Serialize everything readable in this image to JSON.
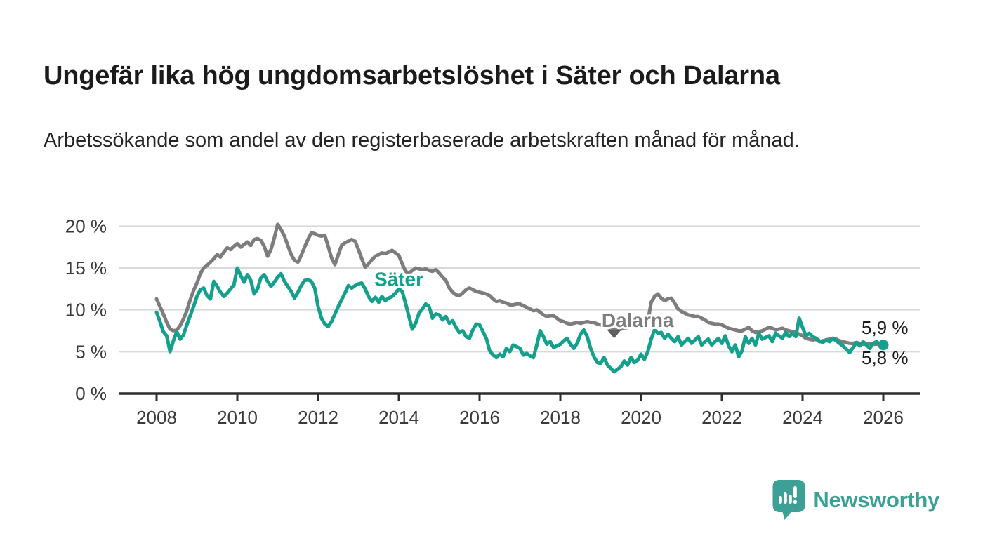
{
  "header": {
    "title": "Ungefär lika hög ungdomsarbetslöshet i Säter och Dalarna",
    "subtitle": "Arbetssökande som andel av den registerbaserade arbetskraften månad för månad."
  },
  "chart_data": {
    "type": "line",
    "title": "Ungefär lika hög ungdomsarbetslöshet i Säter och Dalarna",
    "unit": "percent",
    "frequency": "monthly",
    "x_start": "2008-01",
    "x_end": "2026-01",
    "ylim": [
      0,
      20
    ],
    "grid": true,
    "y_ticks": [
      {
        "value": 0,
        "label": "0 %"
      },
      {
        "value": 5,
        "label": "5 %"
      },
      {
        "value": 10,
        "label": "10 %"
      },
      {
        "value": 15,
        "label": "15 %"
      },
      {
        "value": 20,
        "label": "20 %"
      }
    ],
    "x_ticks": [
      {
        "year": 2008,
        "label": "2008"
      },
      {
        "year": 2010,
        "label": "2010"
      },
      {
        "year": 2012,
        "label": "2012"
      },
      {
        "year": 2014,
        "label": "2014"
      },
      {
        "year": 2016,
        "label": "2016"
      },
      {
        "year": 2018,
        "label": "2018"
      },
      {
        "year": 2020,
        "label": "2020"
      },
      {
        "year": 2022,
        "label": "2022"
      },
      {
        "year": 2024,
        "label": "2024"
      },
      {
        "year": 2026,
        "label": "2026"
      }
    ],
    "series": [
      {
        "name": "Dalarna",
        "color": "#7d7d7d",
        "values": [
          11.3,
          10.4,
          9.5,
          8.5,
          7.7,
          7.5,
          7.6,
          8.1,
          8.9,
          9.9,
          11.2,
          12.3,
          13.2,
          14.3,
          15.0,
          15.3,
          15.7,
          16.1,
          16.6,
          16.3,
          16.9,
          17.4,
          17.2,
          17.6,
          17.9,
          17.5,
          17.8,
          18.1,
          17.7,
          18.4,
          18.5,
          18.3,
          17.6,
          16.4,
          17.2,
          18.6,
          20.2,
          19.6,
          18.8,
          17.7,
          16.6,
          15.9,
          15.7,
          16.5,
          17.5,
          18.4,
          19.2,
          19.1,
          18.9,
          18.8,
          18.9,
          17.6,
          16.2,
          15.4,
          16.6,
          17.7,
          18.0,
          18.2,
          18.4,
          18.2,
          17.2,
          16.1,
          15.1,
          15.5,
          16.0,
          16.4,
          16.6,
          16.8,
          16.7,
          16.9,
          17.1,
          16.8,
          16.5,
          15.5,
          14.6,
          14.4,
          14.7,
          15.0,
          14.9,
          14.8,
          14.9,
          14.7,
          14.6,
          14.8,
          14.4,
          13.9,
          13.5,
          12.6,
          12.1,
          11.8,
          11.7,
          12.0,
          12.4,
          12.6,
          12.4,
          12.2,
          12.1,
          12.0,
          11.9,
          11.7,
          11.3,
          11.0,
          11.1,
          10.9,
          10.8,
          10.6,
          10.6,
          10.7,
          10.7,
          10.5,
          10.3,
          10.1,
          9.9,
          10.0,
          9.7,
          9.4,
          9.2,
          9.3,
          9.3,
          9.0,
          8.7,
          8.6,
          8.4,
          8.3,
          8.4,
          8.5,
          8.4,
          8.5,
          8.6,
          8.5,
          8.5,
          8.3,
          8.2,
          8.1,
          7.9,
          7.8,
          7.7,
          7.6,
          7.7,
          7.8,
          7.9,
          8.0,
          8.2,
          8.3,
          8.4,
          8.3,
          8.6,
          10.9,
          11.6,
          11.9,
          11.4,
          11.1,
          11.3,
          11.4,
          10.8,
          10.1,
          9.8,
          9.6,
          9.4,
          9.3,
          9.2,
          9.2,
          9.0,
          8.8,
          8.5,
          8.4,
          8.3,
          8.3,
          8.2,
          8.0,
          7.8,
          7.7,
          7.6,
          7.5,
          7.5,
          7.7,
          7.9,
          7.5,
          7.3,
          7.4,
          7.5,
          7.7,
          7.9,
          7.8,
          7.6,
          7.7,
          7.8,
          7.6,
          7.5,
          7.4,
          7.3,
          7.1,
          6.9,
          6.6,
          6.5,
          6.4,
          6.5,
          6.2,
          6.3,
          6.4,
          6.5,
          6.6,
          6.5,
          6.3,
          6.2,
          6.1,
          6.0,
          6.0,
          6.1,
          6.0,
          5.9,
          5.9,
          6.0,
          5.9,
          5.9,
          5.9,
          5.9
        ]
      },
      {
        "name": "Säter",
        "color": "#15a08e",
        "values": [
          9.7,
          8.6,
          7.4,
          6.9,
          5.0,
          6.3,
          7.4,
          6.5,
          7.0,
          8.2,
          9.3,
          10.4,
          11.6,
          12.4,
          12.6,
          11.7,
          11.3,
          13.4,
          12.8,
          12.1,
          11.6,
          12.0,
          12.5,
          13.0,
          15.0,
          14.1,
          13.3,
          14.2,
          13.5,
          11.9,
          12.5,
          13.8,
          14.2,
          13.4,
          12.8,
          13.3,
          13.9,
          14.3,
          13.4,
          12.8,
          12.2,
          11.4,
          12.1,
          12.9,
          13.5,
          13.6,
          13.4,
          12.6,
          10.4,
          9.0,
          8.3,
          8.0,
          8.6,
          9.5,
          10.4,
          11.2,
          12.0,
          12.9,
          12.6,
          12.9,
          13.1,
          13.2,
          12.5,
          11.6,
          11.0,
          11.5,
          10.9,
          11.6,
          11.1,
          11.4,
          11.6,
          12.0,
          12.5,
          12.2,
          10.8,
          9.2,
          7.7,
          8.4,
          9.6,
          10.1,
          10.7,
          10.4,
          9.0,
          9.5,
          9.4,
          8.8,
          9.2,
          8.4,
          8.7,
          7.9,
          7.3,
          7.5,
          6.8,
          6.6,
          7.6,
          8.3,
          8.2,
          7.4,
          6.6,
          5.1,
          4.6,
          4.3,
          4.7,
          4.4,
          5.4,
          5.0,
          5.8,
          5.6,
          5.4,
          4.6,
          4.8,
          4.5,
          4.3,
          5.8,
          7.5,
          6.8,
          5.9,
          6.2,
          5.5,
          5.7,
          5.9,
          6.3,
          6.6,
          5.9,
          5.4,
          6.0,
          7.1,
          7.6,
          6.8,
          5.4,
          4.4,
          3.7,
          3.6,
          4.3,
          3.4,
          3.0,
          2.6,
          2.9,
          3.2,
          3.9,
          3.4,
          4.3,
          3.7,
          4.0,
          4.7,
          4.1,
          5.0,
          6.5,
          7.6,
          7.2,
          7.3,
          6.6,
          7.1,
          6.6,
          6.2,
          6.8,
          5.8,
          6.2,
          6.6,
          6.0,
          6.4,
          6.8,
          5.8,
          6.2,
          6.5,
          5.8,
          6.2,
          6.6,
          6.0,
          6.9,
          5.7,
          5.0,
          5.8,
          4.4,
          5.1,
          6.8,
          6.0,
          6.6,
          5.8,
          7.2,
          6.5,
          6.7,
          6.9,
          6.2,
          7.2,
          6.9,
          6.6,
          7.3,
          6.8,
          7.2,
          6.8,
          9.0,
          7.9,
          6.9,
          7.2,
          6.8,
          6.6,
          6.3,
          6.1,
          6.4,
          6.2,
          6.6,
          6.3,
          6.0,
          5.7,
          5.3,
          4.9,
          5.5,
          6.1,
          5.7,
          6.2,
          5.8,
          5.4,
          6.0,
          6.2,
          5.9,
          5.8
        ]
      }
    ],
    "series_labels": [
      {
        "text": "Säter",
        "series": "Säter",
        "month_index": 72,
        "value": 13.7,
        "color": "#15a08e"
      },
      {
        "text": "Dalarna",
        "series": "Dalarna",
        "month_index": 143,
        "value": 8.8,
        "color": "#7d7d7d"
      }
    ],
    "pointer": {
      "month_index": 136,
      "value": 6.6,
      "color": "#5f5f5f"
    },
    "end_dot": {
      "series": "Säter",
      "color": "#15a08e"
    },
    "end_value_labels": [
      {
        "text": "5,9 %",
        "series": "Dalarna",
        "position": "above"
      },
      {
        "text": "5,8 %",
        "series": "Säter",
        "position": "below"
      }
    ],
    "last_values": {
      "Dalarna": 5.9,
      "Säter": 5.8
    }
  },
  "branding": {
    "logo_text": "Newsworthy",
    "logo_color": "#3da097"
  },
  "colors": {
    "sater_line": "#15a08e",
    "dalarna_line": "#7d7d7d",
    "gridline": "#d9d9d9",
    "axis": "#2d2d2d",
    "tick_text": "#3a3a3a",
    "end_label_text": "#1a1a1a"
  }
}
